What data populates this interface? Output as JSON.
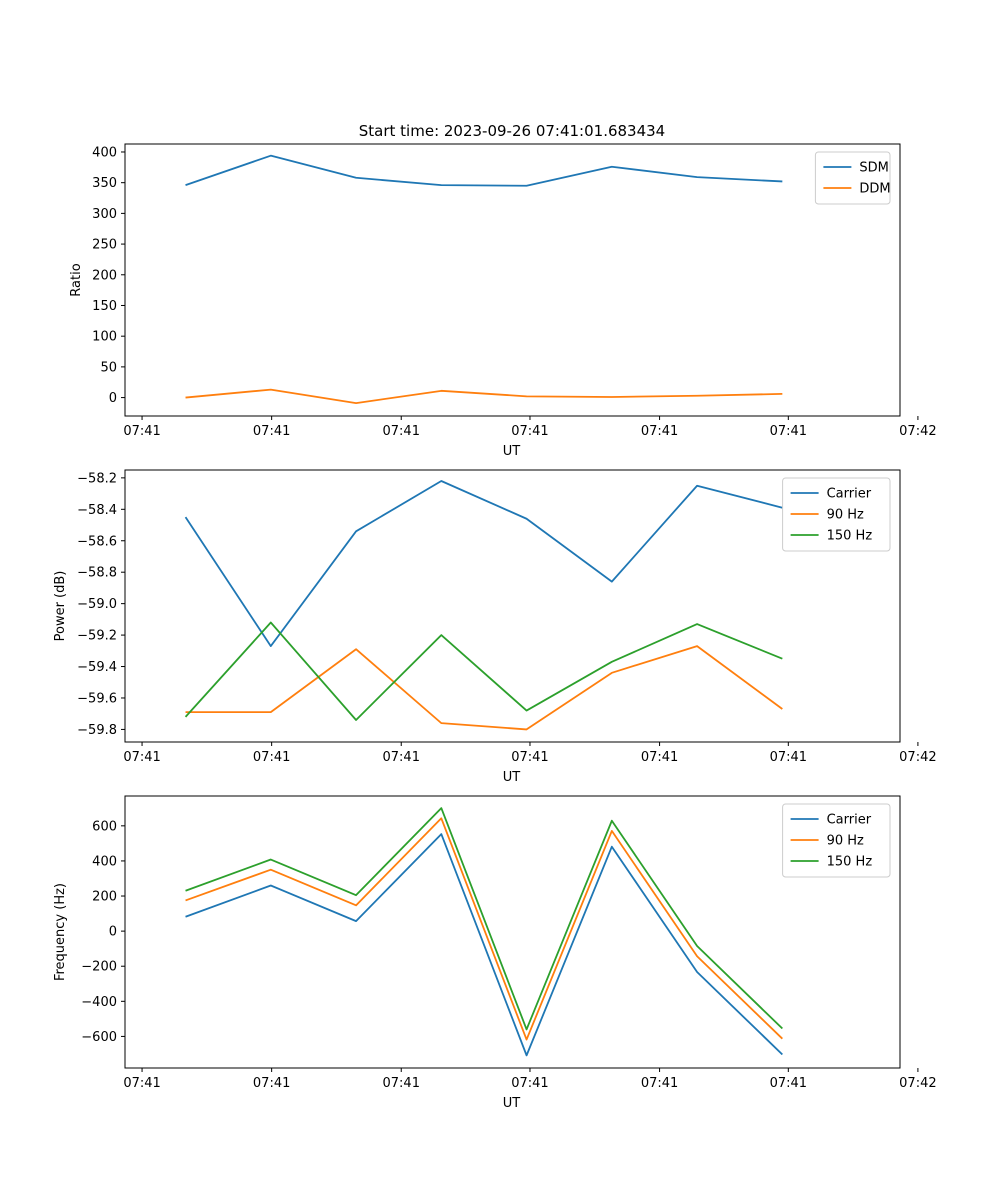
{
  "figure_title": "Start time: 2023-09-26 07:41:01.683434",
  "x_tick_labels": [
    "07:41",
    "07:41",
    "07:41",
    "07:41",
    "07:41",
    "07:41",
    "07:42"
  ],
  "chart_data": [
    {
      "type": "line",
      "title": "Start time: 2023-09-26 07:41:01.683434",
      "xlabel": "UT",
      "ylabel": "Ratio",
      "x": [
        1,
        2,
        3,
        4,
        5,
        6,
        7,
        8
      ],
      "xlim": [
        0.29,
        9.38
      ],
      "ylim": [
        -30,
        413
      ],
      "yticks": [
        0,
        50,
        100,
        150,
        200,
        250,
        300,
        350,
        400
      ],
      "legend_position": "upper right",
      "series": [
        {
          "name": "SDM",
          "color": "#1f77b4",
          "values": [
            346,
            394,
            358,
            346,
            345,
            376,
            359,
            352
          ]
        },
        {
          "name": "DDM",
          "color": "#ff7f0e",
          "values": [
            0,
            13,
            -9,
            11,
            2,
            1,
            3,
            6
          ]
        }
      ]
    },
    {
      "type": "line",
      "xlabel": "UT",
      "ylabel": "Power (dB)",
      "x": [
        1,
        2,
        3,
        4,
        5,
        6,
        7,
        8
      ],
      "xlim": [
        0.29,
        9.38
      ],
      "ylim": [
        -59.88,
        -58.15
      ],
      "yticks": [
        -59.8,
        -59.6,
        -59.4,
        -59.2,
        -59.0,
        -58.8,
        -58.6,
        -58.4,
        -58.2
      ],
      "legend_position": "upper right",
      "series": [
        {
          "name": "Carrier",
          "color": "#1f77b4",
          "values": [
            -58.45,
            -59.27,
            -58.54,
            -58.22,
            -58.46,
            -58.86,
            -58.25,
            -58.39
          ]
        },
        {
          "name": "90 Hz",
          "color": "#ff7f0e",
          "values": [
            -59.69,
            -59.69,
            -59.29,
            -59.76,
            -59.8,
            -59.44,
            -59.27,
            -59.67
          ]
        },
        {
          "name": "150 Hz",
          "color": "#2ca02c",
          "values": [
            -59.72,
            -59.12,
            -59.74,
            -59.2,
            -59.68,
            -59.37,
            -59.13,
            -59.35
          ]
        }
      ]
    },
    {
      "type": "line",
      "xlabel": "UT",
      "ylabel": "Frequency (Hz)",
      "x": [
        1,
        2,
        3,
        4,
        5,
        6,
        7,
        8
      ],
      "xlim": [
        0.29,
        9.38
      ],
      "ylim": [
        -780,
        770
      ],
      "yticks": [
        -600,
        -400,
        -200,
        0,
        200,
        400,
        600
      ],
      "legend_position": "upper right",
      "series": [
        {
          "name": "Carrier",
          "color": "#1f77b4",
          "values": [
            82,
            260,
            57,
            553,
            -708,
            481,
            -233,
            -703
          ]
        },
        {
          "name": "90 Hz",
          "color": "#ff7f0e",
          "values": [
            175,
            350,
            147,
            643,
            -618,
            571,
            -143,
            -613
          ]
        },
        {
          "name": "150 Hz",
          "color": "#2ca02c",
          "values": [
            230,
            408,
            205,
            701,
            -560,
            629,
            -85,
            -555
          ]
        }
      ]
    }
  ]
}
